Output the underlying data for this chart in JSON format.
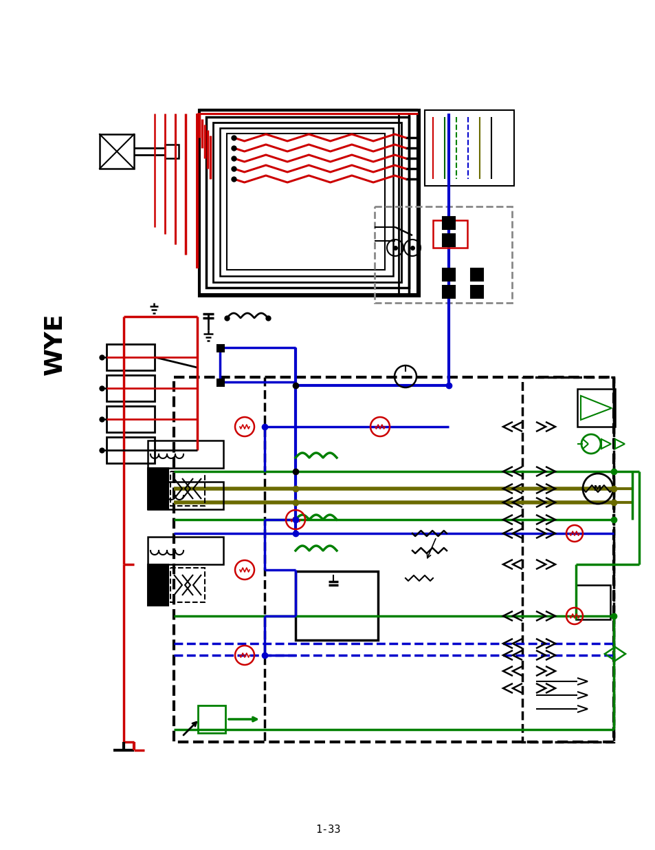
{
  "page_label": "1-33",
  "background": "#ffffff",
  "fig_width": 9.54,
  "fig_height": 12.35,
  "dpi": 100,
  "title": "WYE",
  "colors": {
    "red": "#cc0000",
    "blue": "#0000cc",
    "green": "#008000",
    "darkgreen": "#006400",
    "olive": "#6b6b00",
    "black": "#000000",
    "gray": "#888888"
  }
}
